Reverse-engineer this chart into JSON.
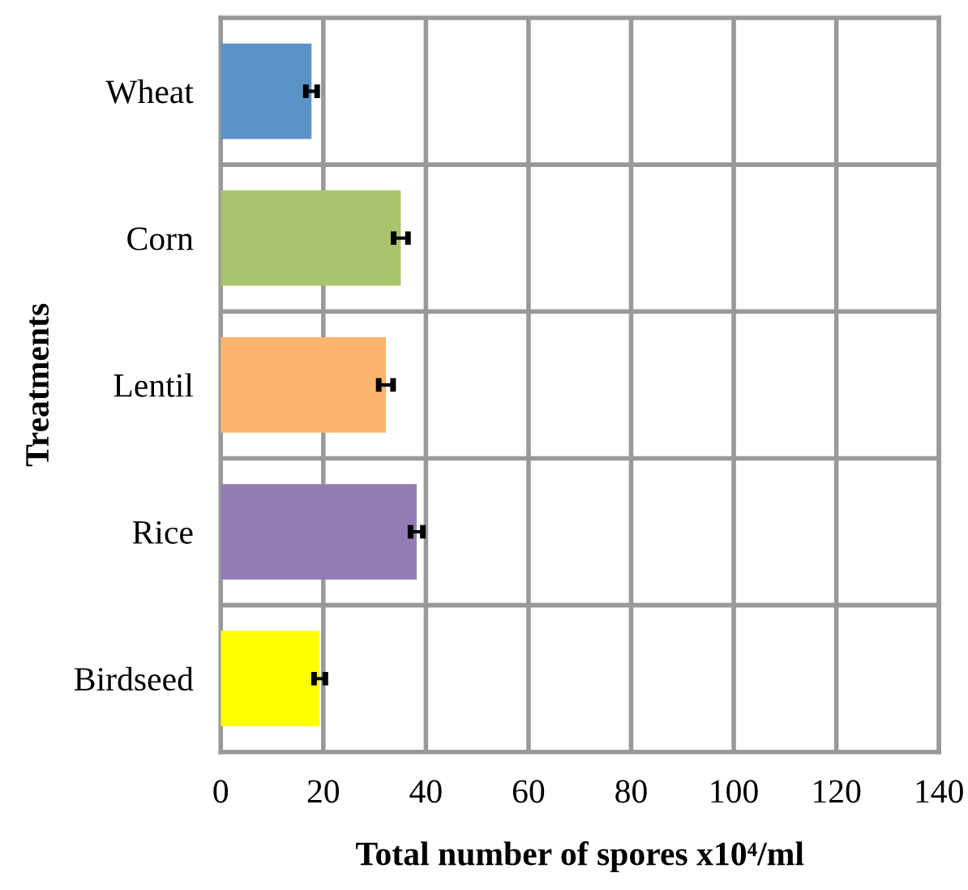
{
  "chart_data": {
    "type": "bar",
    "orientation": "horizontal",
    "categories": [
      "Wheat",
      "Corn",
      "Lentil",
      "Rice",
      "Birdseed"
    ],
    "values": [
      17.7,
      35.1,
      32.2,
      38.2,
      19.3
    ],
    "errors": [
      1.1,
      1.4,
      1.4,
      1.2,
      1.1
    ],
    "colors": [
      "#5b93c7",
      "#a9c46c",
      "#fdb56d",
      "#947bb3",
      "#ffff00"
    ],
    "xlim": [
      0,
      140
    ],
    "xticks": [
      0,
      20,
      40,
      60,
      80,
      100,
      120,
      140
    ],
    "xlabel": "Total number of spores x10⁴/ml",
    "ylabel": "Treatments",
    "grid": true,
    "legend": false
  }
}
